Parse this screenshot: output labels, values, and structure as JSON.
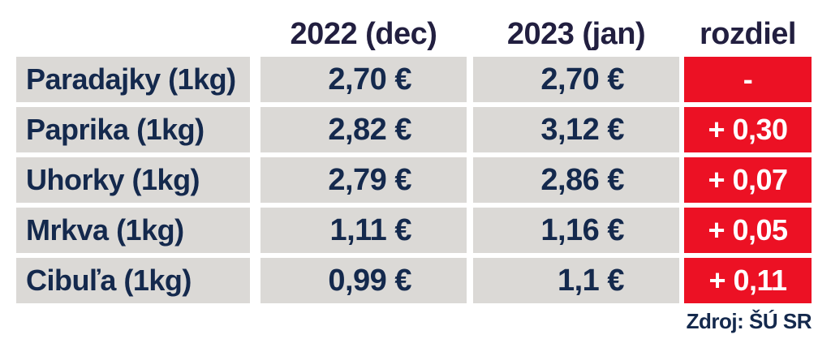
{
  "chart_data": {
    "type": "table",
    "columns": [
      "",
      "2022 (dec)",
      "2023 (jan)",
      "rozdiel"
    ],
    "rows": [
      {
        "label": "Paradajky (1kg)",
        "values": [
          "2,70 €",
          "2,70 €",
          "-"
        ]
      },
      {
        "label": "Paprika (1kg)",
        "values": [
          "2,82 €",
          "3,12 €",
          "+ 0,30"
        ]
      },
      {
        "label": "Uhorky (1kg)",
        "values": [
          "2,79 €",
          "2,86 €",
          "+ 0,07"
        ]
      },
      {
        "label": "Mrkva (1kg)",
        "values": [
          "1,11 €",
          "1,16 €",
          "+ 0,05"
        ]
      },
      {
        "label": "Cibuľa (1kg)",
        "values": [
          "0,99 €",
          "1,1 €",
          "+ 0,11"
        ]
      }
    ],
    "numeric": {
      "categories": [
        "Paradajky (1kg)",
        "Paprika (1kg)",
        "Uhorky (1kg)",
        "Mrkva (1kg)",
        "Cibuľa (1kg)"
      ],
      "series": [
        {
          "name": "2022 (dec)",
          "values": [
            2.7,
            2.82,
            2.79,
            1.11,
            0.99
          ]
        },
        {
          "name": "2023 (jan)",
          "values": [
            2.7,
            3.12,
            2.86,
            1.16,
            1.1
          ]
        },
        {
          "name": "rozdiel",
          "values": [
            0,
            0.3,
            0.07,
            0.05,
            0.11
          ]
        }
      ],
      "unit": "€"
    },
    "source": "Zdroj: ŠÚ SR"
  },
  "colors": {
    "background": "#ffffff",
    "cell-gray": "#dbd9d6",
    "diff-red": "#ec1124",
    "text-navy": "#14294d",
    "header-navy": "#221f40",
    "diff-text": "#ffffff"
  }
}
